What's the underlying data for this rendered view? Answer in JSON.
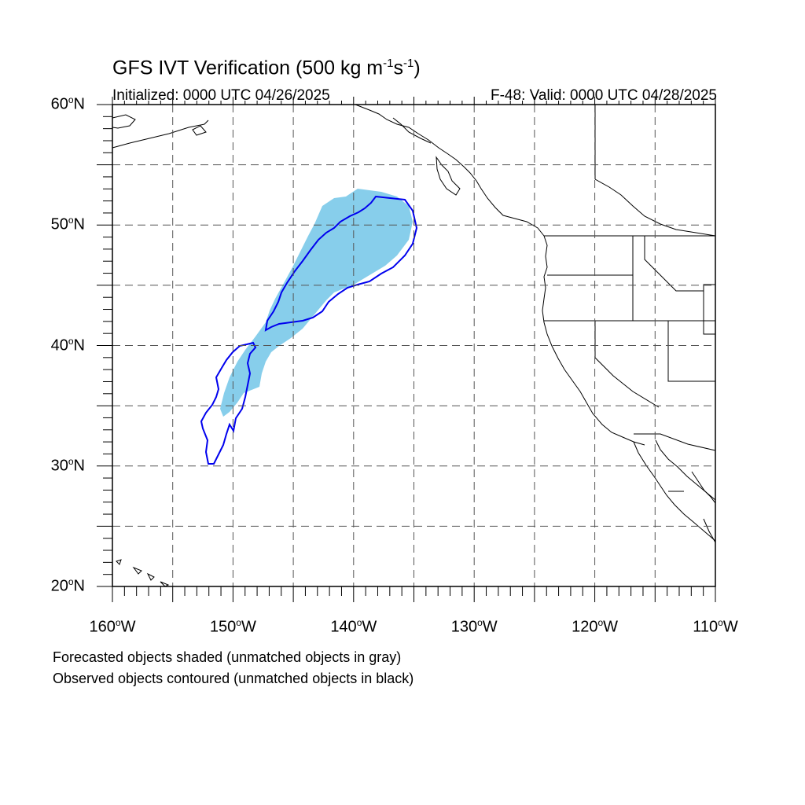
{
  "title": {
    "main": "GFS IVT Verification (500 kg m",
    "exp1": "-1",
    "mid": "s",
    "exp2": "-1",
    "end": ")"
  },
  "initialized": "Initialized: 0000 UTC 04/26/2025",
  "valid": "F-48: Valid: 0000 UTC 04/28/2025",
  "map": {
    "lon_range": [
      -160,
      -110
    ],
    "lat_range": [
      20,
      60
    ],
    "gridlines_lon": [
      -155,
      -150,
      -145,
      -140,
      -135,
      -130,
      -125,
      -120,
      -115
    ],
    "gridlines_lat": [
      25,
      30,
      35,
      40,
      45,
      50,
      55
    ],
    "lat_labels": [
      {
        "deg": "60",
        "suffix": "N"
      },
      {
        "deg": "50",
        "suffix": "N"
      },
      {
        "deg": "40",
        "suffix": "N"
      },
      {
        "deg": "30",
        "suffix": "N"
      },
      {
        "deg": "20",
        "suffix": "N"
      }
    ],
    "lon_labels": [
      {
        "deg": "160",
        "suffix": "W"
      },
      {
        "deg": "150",
        "suffix": "W"
      },
      {
        "deg": "140",
        "suffix": "W"
      },
      {
        "deg": "130",
        "suffix": "W"
      },
      {
        "deg": "120",
        "suffix": "W"
      },
      {
        "deg": "110",
        "suffix": "W"
      }
    ],
    "colors": {
      "forecast_fill": "#87ceeb",
      "observed_contour": "#0000ee",
      "grid": "#555555",
      "coast": "#000000"
    }
  },
  "legend": {
    "line1": "Forecasted objects shaded (unmatched objects in gray)",
    "line2": "Observed objects contoured (unmatched objects in black)"
  }
}
